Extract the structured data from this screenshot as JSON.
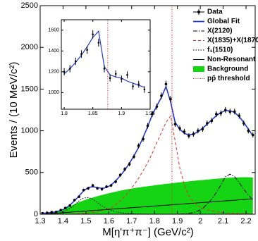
{
  "chart_data": [
    {
      "type": "line",
      "x_label": "M[η'π⁺π⁻] (GeV/c²)",
      "y_label": "Events / (10 MeV/c²)",
      "xlim": [
        1.3,
        2.24
      ],
      "ylim": [
        0,
        2500
      ],
      "xticks": [
        1.3,
        1.4,
        1.5,
        1.6,
        1.7,
        1.8,
        1.9,
        2,
        2.1,
        2.2
      ],
      "yticks": [
        0,
        500,
        1000,
        1500,
        2000,
        2500
      ],
      "legend": "top-right",
      "x": [
        1.31,
        1.33,
        1.35,
        1.37,
        1.39,
        1.41,
        1.43,
        1.45,
        1.47,
        1.49,
        1.51,
        1.53,
        1.55,
        1.57,
        1.59,
        1.61,
        1.63,
        1.65,
        1.67,
        1.69,
        1.71,
        1.73,
        1.75,
        1.77,
        1.79,
        1.81,
        1.83,
        1.85,
        1.87,
        1.89,
        1.91,
        1.93,
        1.95,
        1.97,
        1.99,
        2.01,
        2.03,
        2.05,
        2.07,
        2.09,
        2.11,
        2.13,
        2.15,
        2.17,
        2.19,
        2.21,
        2.23
      ],
      "series": [
        {
          "name": "Background",
          "style": "area",
          "color": "#14d414",
          "values": [
            0,
            5,
            15,
            30,
            50,
            70,
            95,
            120,
            145,
            165,
            185,
            200,
            215,
            230,
            245,
            258,
            270,
            282,
            293,
            303,
            312,
            320,
            328,
            335,
            342,
            350,
            357,
            364,
            370,
            376,
            382,
            388,
            394,
            400,
            405,
            410,
            415,
            420,
            425,
            430,
            434,
            438,
            440,
            442,
            443,
            443,
            440
          ]
        },
        {
          "name": "Non-Resonant",
          "style": "solid",
          "color": "#000000",
          "values": [
            0,
            4,
            8,
            12,
            16,
            20,
            24,
            28,
            32,
            36,
            40,
            44,
            48,
            52,
            56,
            60,
            64,
            68,
            72,
            76,
            80,
            84,
            88,
            92,
            96,
            100,
            104,
            108,
            112,
            116,
            120,
            124,
            128,
            132,
            136,
            140,
            144,
            148,
            152,
            156,
            160,
            164,
            168,
            172,
            176,
            180,
            184
          ]
        },
        {
          "name": "f₁(1510)",
          "style": "dotted",
          "color": "#000000",
          "values": [
            0,
            2,
            5,
            10,
            20,
            40,
            70,
            110,
            160,
            195,
            200,
            180,
            140,
            100,
            70,
            45,
            30,
            20,
            12,
            8,
            5,
            3,
            2,
            1,
            0,
            0,
            0,
            0,
            0,
            0,
            0,
            0,
            0,
            0,
            0,
            0,
            0,
            0,
            0,
            0,
            0,
            0,
            0,
            0,
            0,
            0,
            0
          ]
        },
        {
          "name": "X(1835)+X(1870)",
          "style": "dashed",
          "color": "#e0302a",
          "values": [
            0,
            0,
            0,
            0,
            0,
            0,
            2,
            4,
            7,
            10,
            15,
            22,
            30,
            42,
            60,
            80,
            115,
            160,
            215,
            280,
            350,
            430,
            520,
            620,
            730,
            860,
            980,
            1100,
            1180,
            880,
            560,
            350,
            220,
            150,
            100,
            75,
            55,
            40,
            30,
            22,
            17,
            13,
            10,
            8,
            6,
            5,
            4
          ]
        },
        {
          "name": "X(2120)",
          "style": "dashdot",
          "color": "#000000",
          "values": [
            0,
            0,
            0,
            0,
            0,
            0,
            0,
            0,
            0,
            0,
            0,
            0,
            0,
            0,
            0,
            0,
            0,
            0,
            0,
            0,
            0,
            0,
            0,
            0,
            0,
            0,
            0,
            0,
            0,
            0,
            2,
            5,
            10,
            20,
            40,
            70,
            120,
            180,
            260,
            350,
            450,
            480,
            450,
            380,
            300,
            230,
            170
          ]
        },
        {
          "name": "Global Fit",
          "style": "solid",
          "color": "#2338d4",
          "values": [
            10,
            15,
            20,
            30,
            45,
            70,
            110,
            160,
            220,
            280,
            320,
            330,
            320,
            310,
            320,
            350,
            400,
            460,
            530,
            610,
            700,
            800,
            920,
            1050,
            1190,
            1300,
            1400,
            1530,
            1350,
            1100,
            1020,
            970,
            950,
            960,
            990,
            1030,
            1080,
            1130,
            1180,
            1220,
            1240,
            1240,
            1220,
            1170,
            1100,
            1020,
            940
          ]
        },
        {
          "name": "Data",
          "style": "points",
          "color": "#000000",
          "values": [
            12,
            18,
            25,
            28,
            50,
            75,
            105,
            170,
            210,
            290,
            310,
            345,
            310,
            300,
            330,
            345,
            390,
            470,
            540,
            600,
            690,
            820,
            900,
            1060,
            1200,
            1290,
            1420,
            1560,
            1380,
            1080,
            1030,
            990,
            940,
            960,
            1000,
            1020,
            1090,
            1120,
            1200,
            1210,
            1250,
            1230,
            1230,
            1180,
            1090,
            1000,
            950
          ],
          "errors": [
            4,
            5,
            6,
            6,
            8,
            9,
            11,
            14,
            15,
            18,
            18,
            19,
            18,
            18,
            19,
            19,
            20,
            22,
            24,
            25,
            27,
            29,
            30,
            33,
            35,
            36,
            38,
            40,
            37,
            33,
            32,
            32,
            31,
            31,
            32,
            32,
            33,
            34,
            35,
            35,
            36,
            35,
            35,
            35,
            33,
            32,
            31
          ]
        }
      ],
      "threshold": {
        "name": "pp̄ threshold",
        "value": 1.876,
        "color": "#e0302a"
      }
    },
    {
      "type": "line",
      "xlim": [
        1.795,
        1.95
      ],
      "ylim": [
        840,
        1700
      ],
      "xticks": [
        1.8,
        1.85,
        1.9,
        1.95
      ],
      "yticks": [
        1000,
        1200,
        1400,
        1600
      ],
      "x": [
        1.8,
        1.81,
        1.82,
        1.83,
        1.84,
        1.85,
        1.86,
        1.87,
        1.88,
        1.89,
        1.9,
        1.91,
        1.92,
        1.93,
        1.94
      ],
      "series": [
        {
          "name": "Global Fit",
          "style": "solid",
          "color": "#2338d4",
          "values": [
            1180,
            1230,
            1290,
            1360,
            1440,
            1530,
            1590,
            1250,
            1170,
            1150,
            1140,
            1110,
            1090,
            1070,
            1050
          ]
        },
        {
          "name": "Data",
          "style": "points",
          "color": "#000000",
          "values": [
            1200,
            1230,
            1300,
            1370,
            1410,
            1560,
            1480,
            1230,
            1140,
            1180,
            1130,
            1170,
            1060,
            1080,
            1030
          ],
          "errors": [
            35,
            35,
            36,
            37,
            38,
            40,
            38,
            35,
            34,
            34,
            34,
            34,
            33,
            33,
            32
          ]
        }
      ],
      "threshold": {
        "value": 1.876,
        "color": "#e0302a"
      }
    }
  ]
}
